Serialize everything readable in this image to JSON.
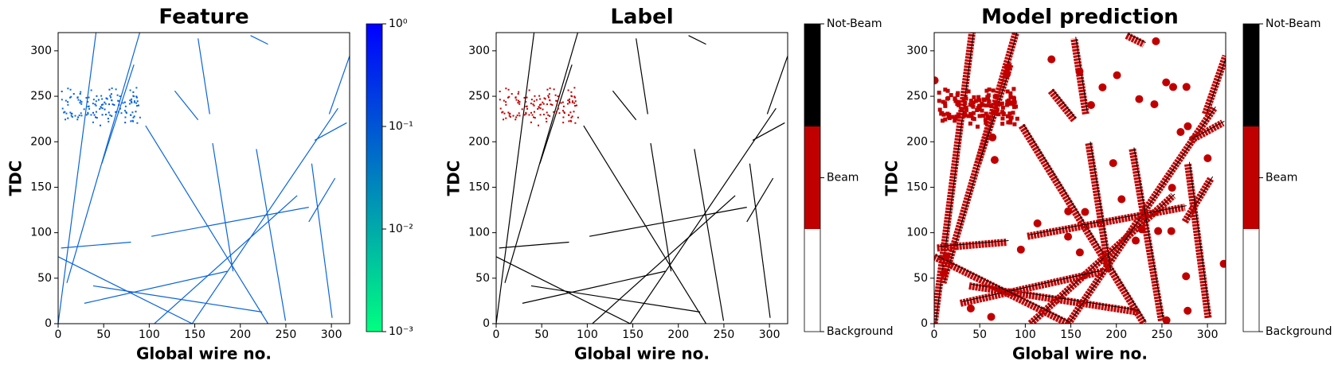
{
  "chart_data": [
    {
      "type": "heatmap",
      "title": "Feature",
      "xlabel": "Global wire no.",
      "ylabel": "TDC",
      "xlim": [
        0,
        320
      ],
      "ylim": [
        0,
        320
      ],
      "xticks": [
        0,
        50,
        100,
        150,
        200,
        250,
        300
      ],
      "yticks": [
        0,
        50,
        100,
        150,
        200,
        250,
        300
      ],
      "colorbar": {
        "scale": "log",
        "lim": [
          0.001,
          1
        ],
        "colors": [
          "#00ff80",
          "#0000ff"
        ],
        "ticks": [
          {
            "value": 0.001,
            "label": "10⁻³"
          },
          {
            "value": 0.01,
            "label": "10⁻²"
          },
          {
            "value": 0.1,
            "label": "10⁻¹"
          },
          {
            "value": 1,
            "label": "10⁰"
          }
        ]
      }
    },
    {
      "type": "heatmap",
      "title": "Label",
      "xlabel": "Global wire no.",
      "ylabel": "TDC",
      "xlim": [
        0,
        320
      ],
      "ylim": [
        0,
        320
      ],
      "xticks": [
        0,
        50,
        100,
        150,
        200,
        250,
        300
      ],
      "yticks": [
        0,
        50,
        100,
        150,
        200,
        250,
        300
      ],
      "colorbar": {
        "scale": "categorical",
        "categories": [
          "Background",
          "Beam",
          "Not-Beam"
        ],
        "colors": [
          "#ffffff",
          "#c00000",
          "#000000"
        ]
      }
    },
    {
      "type": "heatmap",
      "title": "Model prediction",
      "xlabel": "Global wire no.",
      "ylabel": "TDC",
      "xlim": [
        0,
        320
      ],
      "ylim": [
        0,
        320
      ],
      "xticks": [
        0,
        50,
        100,
        150,
        200,
        250,
        300
      ],
      "yticks": [
        0,
        50,
        100,
        150,
        200,
        250,
        300
      ],
      "colorbar": {
        "scale": "categorical",
        "categories": [
          "Background",
          "Beam",
          "Not-Beam"
        ],
        "colors": [
          "#ffffff",
          "#c00000",
          "#000000"
        ]
      }
    }
  ]
}
